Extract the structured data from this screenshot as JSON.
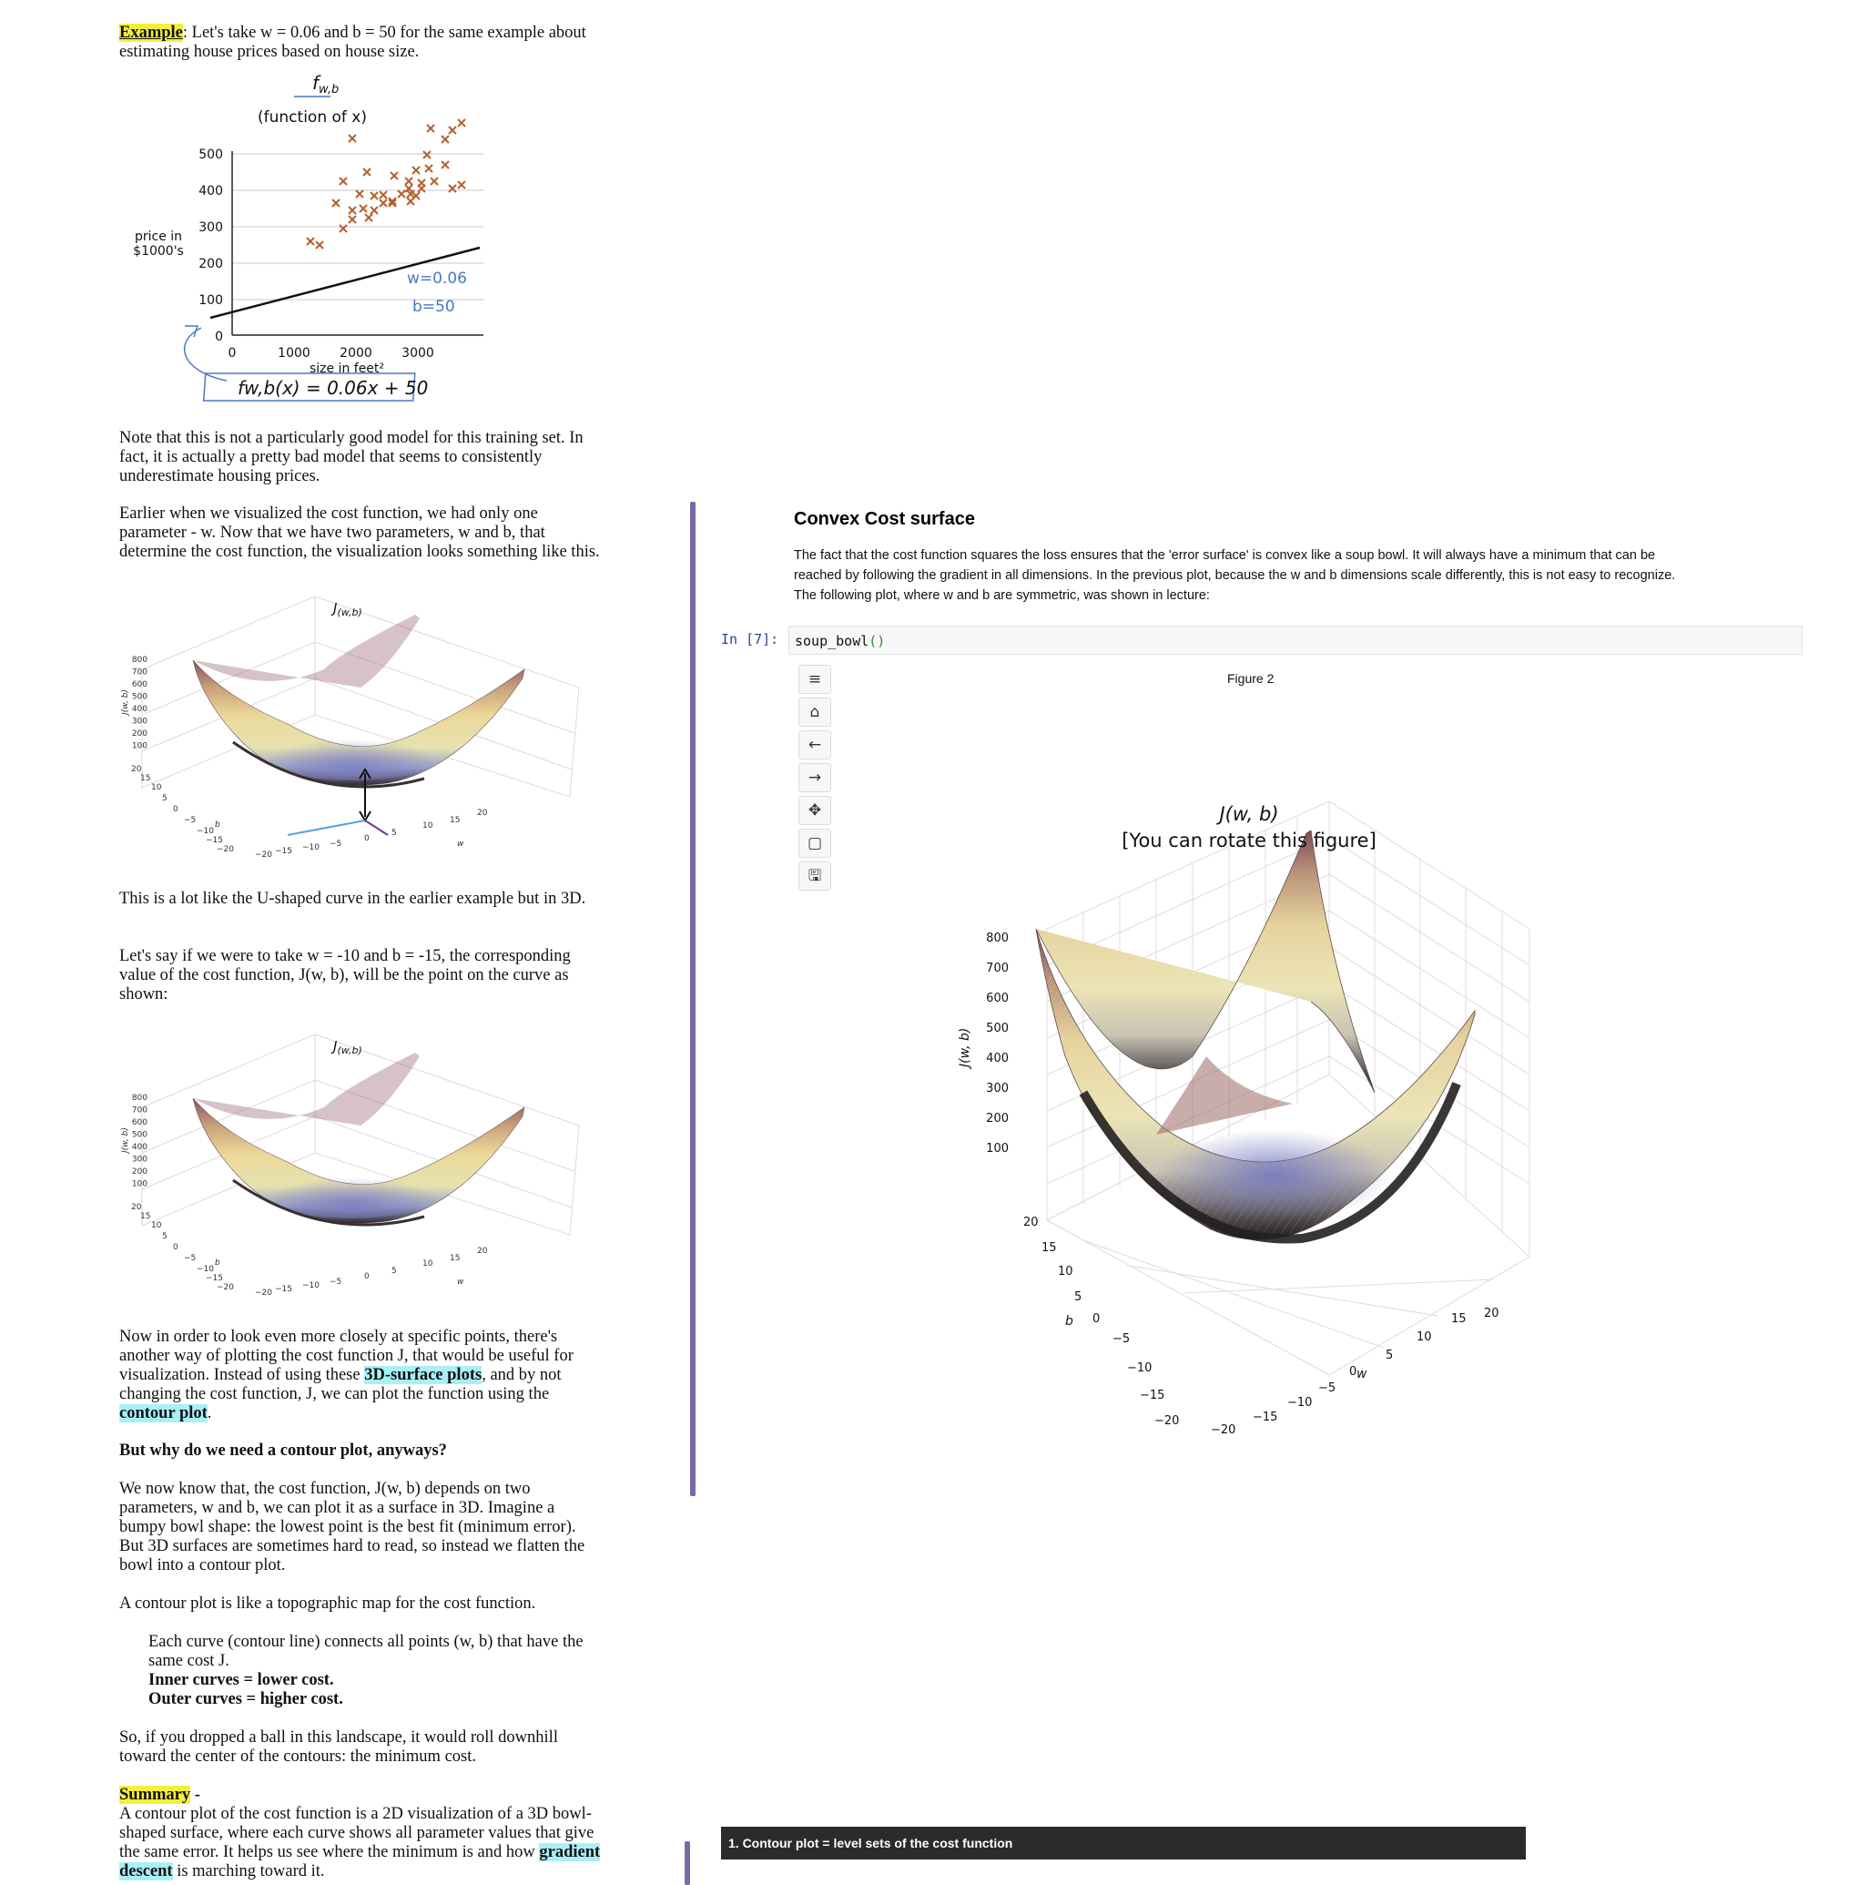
{
  "notes": {
    "p1_label": "Example",
    "p1_text": ": Let's take w = 0.06 and b = 50 for the same example about estimating house prices based on house size.",
    "fig1": {
      "func_title": "fw,b",
      "func_sub": "(function of x)",
      "ylabel_line1": "price in",
      "ylabel_line2": "$1000's",
      "xlabel": "size in feet²",
      "y_ticks": [
        "500",
        "400",
        "300",
        "200",
        "100",
        "0"
      ],
      "x_ticks": [
        "0",
        "1000",
        "2000",
        "3000"
      ],
      "w_note": "w=0.06",
      "b_note": "b=50",
      "formula": "fw,b(x) = 0.06x + 50"
    },
    "p2": "Note that this is not a particularly good model for this training set. In fact, it is actually a pretty bad model that seems to consistently underestimate housing prices.",
    "p3": "Earlier when we visualized the cost function, we had only one parameter - w. Now that we have two parameters, w and b, that determine the cost function, the visualization looks something like this.",
    "surf_small": {
      "title": "J(w,b)",
      "zlabel": "J(w, b)",
      "z_ticks": [
        "800",
        "700",
        "600",
        "500",
        "400",
        "300",
        "200",
        "100"
      ],
      "b_ticks": [
        "20",
        "15",
        "10",
        "5",
        "0",
        "−5",
        "−10",
        "−15",
        "−20"
      ],
      "w_ticks": [
        "−20",
        "−15",
        "−10",
        "−5",
        "0",
        "5",
        "10",
        "15",
        "20"
      ],
      "b_label": "b",
      "w_label": "w"
    },
    "p4": "This is a lot like the U-shaped curve in the earlier example but in 3D.",
    "p5": "Let's say if we were to take w = -10 and b = -15, the corresponding value of the cost function, J(w, b), will be the point on the curve as shown:",
    "p6_a": "Now in order to look even more closely at specific points, there's another way of plotting the cost function J, that would be useful for visualization. Instead of using these ",
    "p6_hl1": "3D-surface plots",
    "p6_b": ", and by not changing the cost function, J, we can plot the function using the ",
    "p6_hl2": "contour plot",
    "p6_c": ".",
    "h_why": "But why do we need a contour plot, anyways?",
    "p7": "We now know that, the cost function, J(w, b) depends on two parameters, w and b, we can plot it as a surface in 3D. Imagine a bumpy bowl shape: the lowest point is the best fit (minimum error). But 3D surfaces are sometimes hard to read, so instead we flatten the bowl into a contour plot.",
    "p8": "A contour plot is like a topographic map for the cost function.",
    "p9": "Each curve (contour line) connects all points (w, b) that have the same cost J.",
    "p10": "Inner curves = lower cost.",
    "p11": "Outer curves = higher cost.",
    "p12": "So, if you dropped a ball in this landscape, it would roll downhill toward the center of the contours: the minimum cost.",
    "summary_label": "Summary",
    "summary_dash": " -",
    "p13_a": "A contour plot of the cost function is a 2D visualization of a 3D bowl-shaped surface, where each curve shows all parameter values that give the same error. It helps us see where the minimum is and how ",
    "p13_hl": "gradient descent",
    "p13_b": " is marching toward it."
  },
  "notebook": {
    "heading": "Convex Cost surface",
    "para_1": "The fact that the cost function squares the loss ensures that the 'error surface' is convex like a soup bowl. It will always have a minimum that can be",
    "para_2": "reached by following the gradient in all dimensions. In the previous plot, because the w and b dimensions scale differently, this is not easy to recognize.",
    "para_3": "The following plot, where w and b are symmetric, was shown in lecture:",
    "prompt": "In [7]:",
    "code_func": "soup_bowl",
    "code_parens": "()",
    "toolbar": [
      "menu-icon",
      "home-icon",
      "back-icon",
      "forward-icon",
      "pan-icon",
      "zoom-rect-icon",
      "save-icon"
    ],
    "figure_label": "Figure 2",
    "plot_title_1": "J(w, b)",
    "plot_title_2": "[You can rotate this figure]",
    "z_label": "J(w, b)",
    "z_ticks": [
      "800",
      "700",
      "600",
      "500",
      "400",
      "300",
      "200",
      "100"
    ],
    "b_ticks": [
      "20",
      "15",
      "10",
      "5",
      "0",
      "−5",
      "−10",
      "−15",
      "−20"
    ],
    "w_ticks": [
      "−20",
      "−15",
      "−10",
      "−5",
      "0",
      "5",
      "10",
      "15",
      "20"
    ],
    "b_label": "b",
    "w_label": "w",
    "footer_bar": "1. Contour plot = level sets of the cost function"
  },
  "colors": {
    "highlight_yellow": "#f4ef3c",
    "highlight_cyan": "#a9f0f6",
    "divider_purple": "#7b68a6",
    "prompt_blue": "#303f9f",
    "paren_green": "#2e8b2e",
    "footer_bg": "#2b2b2b"
  }
}
